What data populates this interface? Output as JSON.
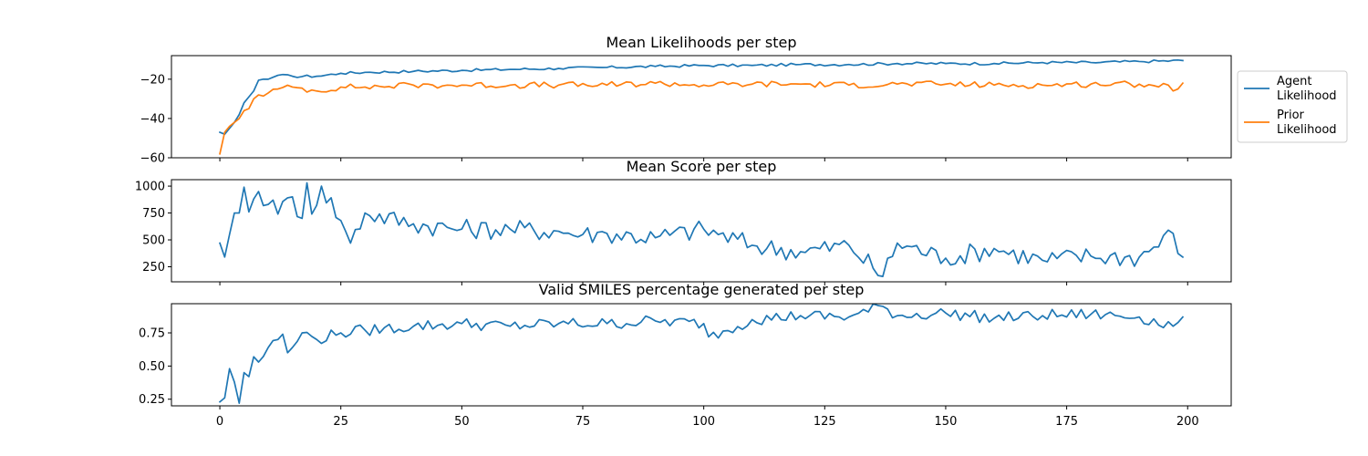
{
  "chart_data": [
    {
      "type": "line",
      "title": "Mean Likelihoods per step",
      "xlabel": "",
      "ylabel": "",
      "xlim": [
        -10,
        209
      ],
      "ylim": [
        -60,
        -8
      ],
      "xticks": [
        0,
        25,
        50,
        75,
        100,
        125,
        150,
        175,
        200
      ],
      "xtick_labels_visible": false,
      "yticks": [
        -60,
        -40,
        -20
      ],
      "ytick_labels": [
        "−60",
        "−40",
        "−20"
      ],
      "grid": false,
      "legend": "outside-right",
      "series": [
        {
          "name": "Agent\nLikelihood",
          "legend_lines": [
            "Agent",
            "Likelihood"
          ],
          "color": "#1f77b4",
          "keyframes": [
            [
              0,
              -47
            ],
            [
              1,
              -48
            ],
            [
              2,
              -45
            ],
            [
              3,
              -42
            ],
            [
              4,
              -38
            ],
            [
              5,
              -32
            ],
            [
              6,
              -29
            ],
            [
              7,
              -26
            ],
            [
              8,
              -20.5
            ],
            [
              9,
              -20
            ],
            [
              10,
              -20
            ],
            [
              11,
              -19
            ],
            [
              12,
              -18
            ],
            [
              15,
              -18.5
            ],
            [
              20,
              -18.5
            ],
            [
              25,
              -17
            ],
            [
              30,
              -16.5
            ],
            [
              40,
              -16
            ],
            [
              50,
              -15.5
            ],
            [
              60,
              -15
            ],
            [
              70,
              -14.5
            ],
            [
              80,
              -14
            ],
            [
              90,
              -13.5
            ],
            [
              100,
              -13
            ],
            [
              110,
              -13
            ],
            [
              120,
              -12.5
            ],
            [
              130,
              -12.5
            ],
            [
              140,
              -12
            ],
            [
              150,
              -12
            ],
            [
              160,
              -12
            ],
            [
              170,
              -11.5
            ],
            [
              180,
              -11.5
            ],
            [
              190,
              -11
            ],
            [
              199,
              -10.5
            ]
          ],
          "noise": 0.7
        },
        {
          "name": "Prior\nLikelihood",
          "legend_lines": [
            "Prior",
            "Likelihood"
          ],
          "color": "#ff7f0e",
          "keyframes": [
            [
              0,
              -58
            ],
            [
              1,
              -47
            ],
            [
              2,
              -44
            ],
            [
              3,
              -42
            ],
            [
              4,
              -40
            ],
            [
              5,
              -36
            ],
            [
              6,
              -35
            ],
            [
              7,
              -30
            ],
            [
              8,
              -28
            ],
            [
              10,
              -27
            ],
            [
              12,
              -25
            ],
            [
              15,
              -24
            ],
            [
              20,
              -26
            ],
            [
              25,
              -24
            ],
            [
              30,
              -24
            ],
            [
              40,
              -23
            ],
            [
              50,
              -23
            ],
            [
              60,
              -23
            ],
            [
              70,
              -23
            ],
            [
              80,
              -23
            ],
            [
              90,
              -22
            ],
            [
              100,
              -23
            ],
            [
              110,
              -22.5
            ],
            [
              120,
              -22.5
            ],
            [
              130,
              -23
            ],
            [
              140,
              -22.5
            ],
            [
              150,
              -22.5
            ],
            [
              160,
              -23
            ],
            [
              170,
              -23
            ],
            [
              180,
              -22.5
            ],
            [
              190,
              -22.5
            ],
            [
              196,
              -23
            ],
            [
              197,
              -26
            ],
            [
              199,
              -22
            ]
          ],
          "noise": 1.6
        }
      ]
    },
    {
      "type": "line",
      "title": "Mean Score per step",
      "xlabel": "",
      "ylabel": "",
      "xlim": [
        -10,
        209
      ],
      "ylim": [
        110,
        1060
      ],
      "xticks": [
        0,
        25,
        50,
        75,
        100,
        125,
        150,
        175,
        200
      ],
      "xtick_labels_visible": false,
      "yticks": [
        250,
        500,
        750,
        1000
      ],
      "ytick_labels": [
        "250",
        "500",
        "750",
        "1000"
      ],
      "grid": false,
      "series": [
        {
          "color": "#1f77b4",
          "keyframes": [
            [
              0,
              470
            ],
            [
              1,
              340
            ],
            [
              2,
              550
            ],
            [
              3,
              750
            ],
            [
              4,
              750
            ],
            [
              5,
              990
            ],
            [
              6,
              760
            ],
            [
              7,
              880
            ],
            [
              8,
              950
            ],
            [
              10,
              830
            ],
            [
              11,
              870
            ],
            [
              12,
              740
            ],
            [
              15,
              900
            ],
            [
              17,
              700
            ],
            [
              18,
              1030
            ],
            [
              19,
              740
            ],
            [
              21,
              1000
            ],
            [
              25,
              680
            ],
            [
              27,
              470
            ],
            [
              30,
              750
            ],
            [
              40,
              650
            ],
            [
              50,
              600
            ],
            [
              60,
              600
            ],
            [
              70,
              580
            ],
            [
              75,
              550
            ],
            [
              80,
              560
            ],
            [
              90,
              520
            ],
            [
              100,
              600
            ],
            [
              110,
              450
            ],
            [
              120,
              390
            ],
            [
              130,
              450
            ],
            [
              137,
              160
            ],
            [
              140,
              470
            ],
            [
              150,
              330
            ],
            [
              160,
              420
            ],
            [
              170,
              310
            ],
            [
              180,
              350
            ],
            [
              190,
              340
            ],
            [
              197,
              560
            ],
            [
              199,
              340
            ]
          ],
          "noise": 95
        }
      ]
    },
    {
      "type": "line",
      "title": "Valid SMILES percentage generated per step",
      "xlabel": "",
      "ylabel": "",
      "xlim": [
        -10,
        209
      ],
      "ylim": [
        0.2,
        0.97
      ],
      "xticks": [
        0,
        25,
        50,
        75,
        100,
        125,
        150,
        175,
        200
      ],
      "xtick_labels": [
        "0",
        "25",
        "50",
        "75",
        "100",
        "125",
        "150",
        "175",
        "200"
      ],
      "yticks": [
        0.25,
        0.5,
        0.75
      ],
      "ytick_labels": [
        "0.25",
        "0.50",
        "0.75"
      ],
      "grid": false,
      "series": [
        {
          "color": "#1f77b4",
          "keyframes": [
            [
              0,
              0.23
            ],
            [
              1,
              0.26
            ],
            [
              2,
              0.48
            ],
            [
              3,
              0.38
            ],
            [
              4,
              0.22
            ],
            [
              5,
              0.45
            ],
            [
              6,
              0.42
            ],
            [
              7,
              0.57
            ],
            [
              8,
              0.53
            ],
            [
              10,
              0.64
            ],
            [
              12,
              0.7
            ],
            [
              13,
              0.74
            ],
            [
              14,
              0.6
            ],
            [
              15,
              0.64
            ],
            [
              17,
              0.75
            ],
            [
              20,
              0.7
            ],
            [
              25,
              0.75
            ],
            [
              30,
              0.77
            ],
            [
              40,
              0.8
            ],
            [
              50,
              0.82
            ],
            [
              60,
              0.8
            ],
            [
              70,
              0.82
            ],
            [
              80,
              0.82
            ],
            [
              90,
              0.84
            ],
            [
              100,
              0.82
            ],
            [
              101,
              0.72
            ],
            [
              110,
              0.85
            ],
            [
              120,
              0.88
            ],
            [
              130,
              0.87
            ],
            [
              137,
              0.95
            ],
            [
              140,
              0.88
            ],
            [
              150,
              0.9
            ],
            [
              160,
              0.86
            ],
            [
              170,
              0.88
            ],
            [
              180,
              0.89
            ],
            [
              190,
              0.87
            ],
            [
              197,
              0.8
            ],
            [
              199,
              0.87
            ]
          ],
          "noise": 0.045
        }
      ]
    }
  ]
}
